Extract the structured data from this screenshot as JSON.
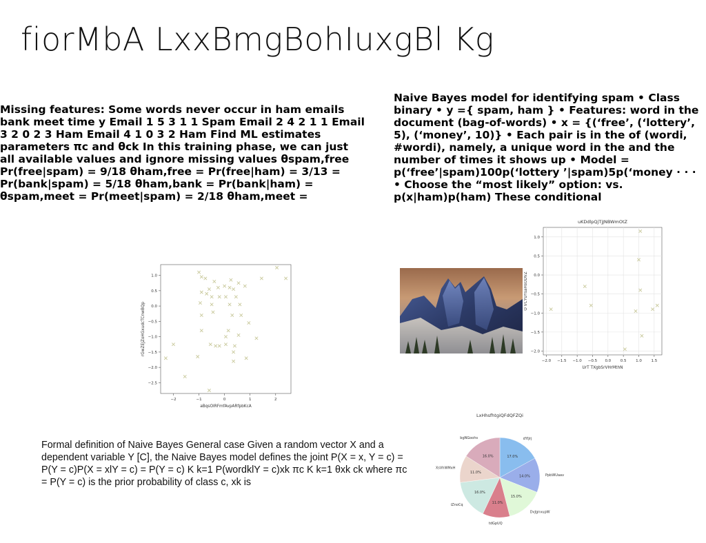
{
  "slide": {
    "title": "fiorMbA  LxxBmgBohIuxgBl Kg",
    "left_text": "Missing features: Some words never occur in ham emails bank meet time y Email 1 5 3 1 1 Spam Email 2 4 2 1 1 Email 3 2 0 2 3 Ham Email 4 1 0 3 2 Ham Find ML estimates parameters πc and θck In this training phase, we can just all available values and ignore missing values θspam,free Pr(free|spam) = 9/18 θham,free = Pr(free|ham) = 3/13 = Pr(bank|spam) = 5/18 θham,bank = Pr(bank|ham) = θspam,meet = Pr(meet|spam) = 2/18 θham,meet =",
    "right_text": "Naive Bayes model for identifying spam • Class binary • y ={ spam, ham } • Features: word in the document (bag-of-words) • x = {(‘free’, (‘lottery’, 5), (‘money’, 10)} • Each pair is in the of (wordi, #wordi), namely, a unique word in the and the number of times it shows up • Model = p(‘free’|spam)100p(‘lottery ’|spam)5p(‘money · · · • Choose the “most likely” option: vs. p(x|ham)p(ham) These conditional",
    "bottom_text": "Formal definition of Naive Bayes General case Given a random vector X  and a dependent variable Y  [C], the Naive Bayes model defines the joint P(X = x, Y = c) = P(Y = c)P(X = xlY = c) = P(Y = c) K  k=1 P(wordklY = c)xk πc K  k=1 θxk ck where πc = P(Y = c) is the prior probability of class c, xk is"
  },
  "chart_data": [
    {
      "type": "scatter",
      "title": "",
      "xlabel": "aBqsOlRFmfAvpARfpbKcA",
      "ylabel": "rGwZEJZoHGxudcTCnwBQp",
      "marker": "x",
      "color": "#c8c89a",
      "xlim": [
        -2.5,
        2.6
      ],
      "ylim": [
        -2.85,
        1.35
      ],
      "xticks": [
        "−2",
        "−1",
        "0",
        "1",
        "2"
      ],
      "xtick_values": [
        -2,
        -1,
        0,
        1,
        2
      ],
      "yticks": [
        "1.0",
        "0.5",
        "0.0",
        "−0.5",
        "−1.0",
        "−1.5",
        "−2.0",
        "−2.5"
      ],
      "ytick_values": [
        1.0,
        0.5,
        0.0,
        -0.5,
        -1.0,
        -1.5,
        -2.0,
        -2.5
      ],
      "grid": false,
      "points": [
        {
          "x": -1.0,
          "y": 1.1
        },
        {
          "x": -0.9,
          "y": 0.95
        },
        {
          "x": -0.75,
          "y": 0.9
        },
        {
          "x": -0.6,
          "y": 0.55
        },
        {
          "x": -0.9,
          "y": 0.45
        },
        {
          "x": -0.7,
          "y": 0.4
        },
        {
          "x": -0.5,
          "y": 0.3
        },
        {
          "x": -0.4,
          "y": 0.8
        },
        {
          "x": -0.25,
          "y": 0.6
        },
        {
          "x": 0.0,
          "y": 0.65
        },
        {
          "x": 0.2,
          "y": 0.6
        },
        {
          "x": 0.35,
          "y": 0.55
        },
        {
          "x": 0.55,
          "y": 0.75
        },
        {
          "x": 0.8,
          "y": 0.65
        },
        {
          "x": 1.45,
          "y": 0.9
        },
        {
          "x": 2.05,
          "y": 1.25
        },
        {
          "x": 2.4,
          "y": 0.9
        },
        {
          "x": 0.25,
          "y": 0.85
        },
        {
          "x": -0.2,
          "y": 0.3
        },
        {
          "x": 0.05,
          "y": 0.3
        },
        {
          "x": 0.45,
          "y": 0.3
        },
        {
          "x": -0.95,
          "y": 0.1
        },
        {
          "x": -0.5,
          "y": 0.05
        },
        {
          "x": 0.2,
          "y": 0.05
        },
        {
          "x": 0.6,
          "y": 0.05
        },
        {
          "x": -0.9,
          "y": -0.3
        },
        {
          "x": -0.45,
          "y": -0.2
        },
        {
          "x": 0.3,
          "y": -0.3
        },
        {
          "x": 0.65,
          "y": -0.3
        },
        {
          "x": 0.95,
          "y": -0.55
        },
        {
          "x": -0.9,
          "y": -0.8
        },
        {
          "x": 0.15,
          "y": -0.8
        },
        {
          "x": 0.05,
          "y": -1.0
        },
        {
          "x": 0.55,
          "y": -0.95
        },
        {
          "x": -0.2,
          "y": -1.3
        },
        {
          "x": 0.05,
          "y": -1.25
        },
        {
          "x": -0.55,
          "y": -1.25
        },
        {
          "x": -0.35,
          "y": -1.3
        },
        {
          "x": 0.4,
          "y": -1.3
        },
        {
          "x": 1.25,
          "y": -1.05
        },
        {
          "x": -1.05,
          "y": -1.65
        },
        {
          "x": 0.35,
          "y": -1.5
        },
        {
          "x": 0.35,
          "y": -1.8
        },
        {
          "x": 0.85,
          "y": -1.7
        },
        {
          "x": -2.3,
          "y": -1.7
        },
        {
          "x": -2.0,
          "y": -1.25
        },
        {
          "x": -1.55,
          "y": -2.3
        },
        {
          "x": -0.6,
          "y": -2.75
        }
      ]
    },
    {
      "type": "scatter",
      "title": "uKDdlpQjTjJNBWmOtZ",
      "xlabel": "UrT TXgbSrVHrMthN",
      "ylabel": "O VCYUYsaHsODVZ",
      "marker": "x",
      "color": "#c8c89a",
      "xlim": [
        -2.1,
        1.75
      ],
      "ylim": [
        -2.1,
        1.25
      ],
      "xticks": [
        "−2.0",
        "−1.5",
        "−1.0",
        "−0.5",
        "0.0",
        "0.5",
        "1.0",
        "1.5"
      ],
      "xtick_values": [
        -2.0,
        -1.5,
        -1.0,
        -0.5,
        0.0,
        0.5,
        1.0,
        1.5
      ],
      "yticks": [
        "1.0",
        "0.5",
        "0.0",
        "−0.5",
        "−1.0",
        "−1.5",
        "−2.0"
      ],
      "ytick_values": [
        1.0,
        0.5,
        0.0,
        -0.5,
        -1.0,
        -1.5,
        -2.0
      ],
      "grid": true,
      "points": [
        {
          "x": 1.05,
          "y": 1.15
        },
        {
          "x": 1.0,
          "y": 0.4
        },
        {
          "x": -0.75,
          "y": -0.3
        },
        {
          "x": 1.05,
          "y": -0.4
        },
        {
          "x": -0.55,
          "y": -0.8
        },
        {
          "x": -1.85,
          "y": -0.9
        },
        {
          "x": 0.9,
          "y": -0.95
        },
        {
          "x": 1.45,
          "y": -0.9
        },
        {
          "x": 1.6,
          "y": -0.8
        },
        {
          "x": 1.1,
          "y": -1.6
        },
        {
          "x": 0.55,
          "y": -1.95
        }
      ]
    },
    {
      "type": "pie",
      "title": "LxHhsfhtgiQFdQFZQi",
      "start_angle": 90,
      "direction": "clockwise",
      "slices": [
        {
          "label": "dYIJrj",
          "value": 17.0,
          "pct_label": "17.0%",
          "color": "#89bdee"
        },
        {
          "label": "PpbWUaav",
          "value": 14.0,
          "pct_label": "14.0%",
          "color": "#9aaeea"
        },
        {
          "label": "DvJgnvupW",
          "value": 15.0,
          "pct_label": "15.0%",
          "color": "#e0f8d8"
        },
        {
          "label": "tdGpUQ",
          "value": 11.0,
          "pct_label": "11.0%",
          "color": "#d97f8c"
        },
        {
          "label": "iZnoCq",
          "value": 16.0,
          "pct_label": "16.0%",
          "color": "#cde9e2"
        },
        {
          "label": "XsVhWMxH",
          "value": 11.0,
          "pct_label": "11.0%",
          "color": "#ebd5cc"
        },
        {
          "label": "bgNGoohs",
          "value": 16.0,
          "pct_label": "16.0%",
          "color": "#d9abbb"
        }
      ]
    }
  ]
}
